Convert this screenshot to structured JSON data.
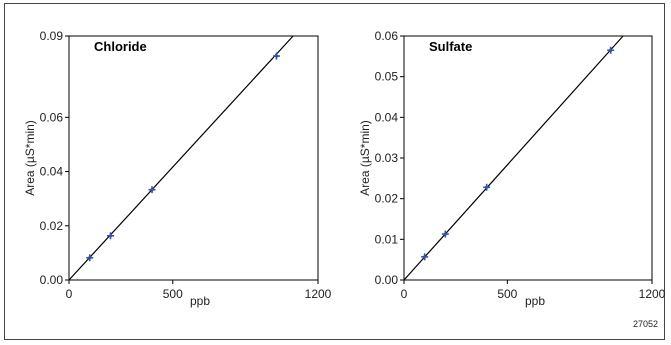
{
  "figure_id": "27052",
  "colors": {
    "marker": "#3355a8",
    "line": "#000000",
    "axis": "#000000"
  },
  "chart_data": [
    {
      "type": "scatter",
      "title": "Chloride",
      "xlabel": "ppb",
      "ylabel": "Area (µS*min)",
      "xlim": [
        0,
        1200
      ],
      "ylim": [
        0,
        0.09
      ],
      "xticks": [
        0,
        500,
        1200
      ],
      "yticks": [
        0.0,
        0.02,
        0.04,
        0.06,
        0.09
      ],
      "ytick_labels": [
        "0.00",
        "0.02",
        "0.04",
        "0.06",
        "0.09"
      ],
      "series": [
        {
          "x": [
            100,
            200,
            400,
            1000
          ],
          "y": [
            0.0082,
            0.0163,
            0.0333,
            0.0826
          ]
        }
      ],
      "fit_line": {
        "x": [
          0,
          1080
        ],
        "y": [
          0,
          0.09
        ]
      }
    },
    {
      "type": "scatter",
      "title": "Sulfate",
      "xlabel": "ppb",
      "ylabel": "Area (µS*min)",
      "xlim": [
        0,
        1200
      ],
      "ylim": [
        0,
        0.06
      ],
      "xticks": [
        0,
        500,
        1200
      ],
      "yticks": [
        0.0,
        0.01,
        0.02,
        0.03,
        0.04,
        0.05,
        0.06
      ],
      "ytick_labels": [
        "0.00",
        "0.01",
        "0.02",
        "0.03",
        "0.04",
        "0.05",
        "0.06"
      ],
      "series": [
        {
          "x": [
            100,
            200,
            400,
            1000
          ],
          "y": [
            0.0057,
            0.0113,
            0.0228,
            0.0565
          ]
        }
      ],
      "fit_line": {
        "x": [
          0,
          1060
        ],
        "y": [
          0,
          0.06
        ]
      }
    }
  ]
}
